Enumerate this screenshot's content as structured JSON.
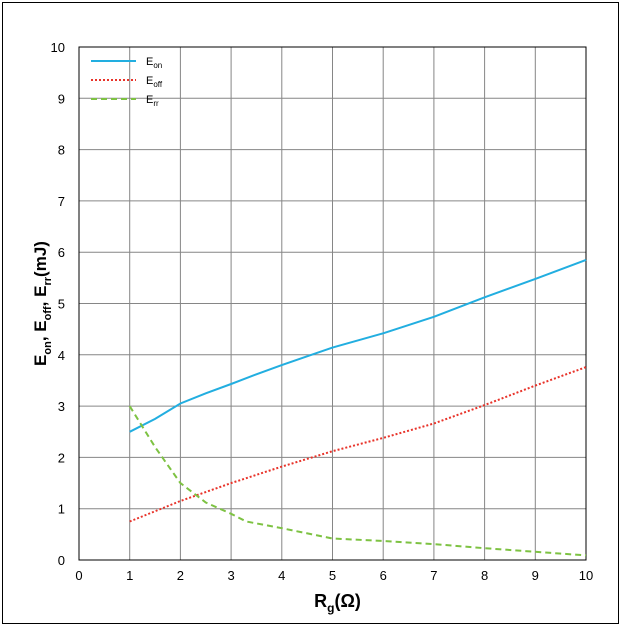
{
  "chart_data": {
    "type": "line",
    "xlabel": {
      "main": "R",
      "sub": "g",
      "rest": "(Ω)"
    },
    "ylabel": [
      {
        "main": "E",
        "sub": "on"
      },
      {
        "main": ", E",
        "sub": "off"
      },
      {
        "main": ", E",
        "sub": "rr"
      },
      {
        "main": "(mJ)"
      }
    ],
    "xlim": [
      0,
      10
    ],
    "ylim": [
      0,
      10
    ],
    "xticks": [
      0,
      1,
      2,
      3,
      4,
      5,
      6,
      7,
      8,
      9,
      10
    ],
    "yticks": [
      0,
      1,
      2,
      3,
      4,
      5,
      6,
      7,
      8,
      9,
      10
    ],
    "grid": true,
    "legend_position": "top-left",
    "series": [
      {
        "name": "E",
        "name_sub": "on",
        "color": "#22aee0",
        "style": "solid",
        "x": [
          1,
          1.5,
          2,
          2.5,
          3,
          3.5,
          4,
          4.5,
          5,
          6,
          7,
          8,
          9,
          10
        ],
        "y": [
          2.5,
          2.75,
          3.05,
          3.25,
          3.43,
          3.62,
          3.8,
          3.97,
          4.14,
          4.42,
          4.74,
          5.12,
          5.48,
          5.85
        ]
      },
      {
        "name": "E",
        "name_sub": "off",
        "color": "#e8332a",
        "style": "dotted",
        "x": [
          1,
          2,
          3,
          4,
          5,
          6,
          7,
          8,
          9,
          10
        ],
        "y": [
          0.75,
          1.15,
          1.5,
          1.82,
          2.12,
          2.38,
          2.66,
          3.02,
          3.4,
          3.76
        ]
      },
      {
        "name": "E",
        "name_sub": "rr",
        "color": "#7dc242",
        "style": "dashed",
        "x": [
          1,
          1.5,
          2,
          2.5,
          3,
          3.3,
          4,
          5,
          6,
          7,
          8,
          9,
          10
        ],
        "y": [
          3.0,
          2.2,
          1.5,
          1.12,
          0.9,
          0.75,
          0.62,
          0.42,
          0.37,
          0.31,
          0.23,
          0.16,
          0.09
        ]
      }
    ]
  }
}
